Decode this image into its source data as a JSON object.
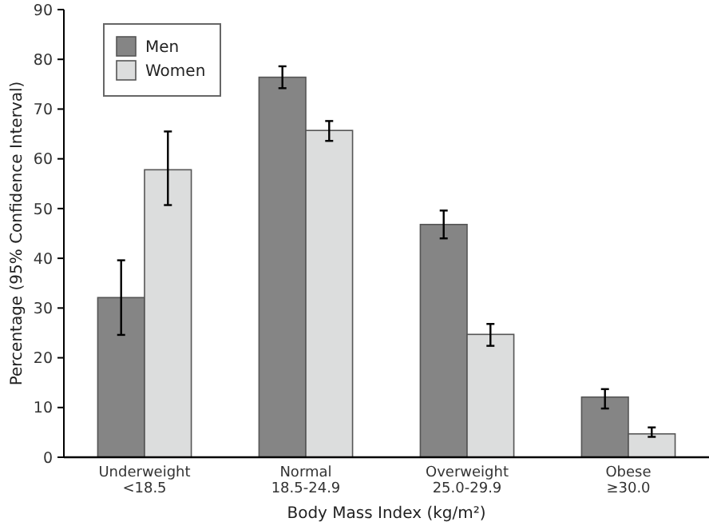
{
  "chart_data": {
    "type": "bar",
    "xlabel": "Body Mass Index (kg/m²)",
    "ylabel": "Percentage (95% Confidence Interval)",
    "categories": [
      "Underweight\n<18.5",
      "Normal\n18.5-24.9",
      "Overweight\n25.0-29.9",
      "Obese\n≥30.0"
    ],
    "series": [
      {
        "name": "Men",
        "color": "#858585",
        "values": [
          32.1,
          76.4,
          46.8,
          12.1
        ],
        "errors": [
          [
            24.6,
            39.6
          ],
          [
            74.2,
            78.6
          ],
          [
            44.0,
            49.6
          ],
          [
            9.8,
            13.7
          ]
        ]
      },
      {
        "name": "Women",
        "color": "#dcdddd",
        "values": [
          57.8,
          65.7,
          24.7,
          4.7
        ],
        "errors": [
          [
            50.7,
            65.5
          ],
          [
            63.6,
            67.6
          ],
          [
            22.4,
            26.8
          ],
          [
            4.1,
            6.0
          ]
        ]
      }
    ],
    "ylim": [
      0,
      90
    ],
    "yticks": [
      0,
      10,
      20,
      30,
      40,
      50,
      60,
      70,
      80,
      90
    ],
    "grid": false,
    "legend": "top left"
  }
}
